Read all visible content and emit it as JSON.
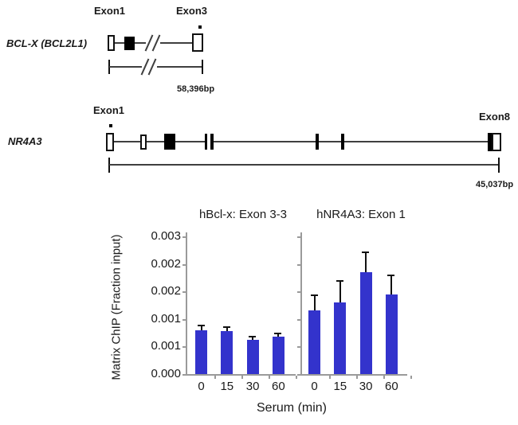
{
  "gene_diagrams": [
    {
      "name": "BCL-X (BCL2L1)",
      "left_exon_label": "Exon1",
      "right_exon_label": "Exon3",
      "length_label": "58,396bp"
    },
    {
      "name": "NR4A3",
      "left_exon_label": "Exon1",
      "right_exon_label": "Exon8",
      "length_label": "45,037bp"
    }
  ],
  "chart_data": {
    "type": "bar",
    "xlabel": "Serum (min)",
    "ylabel": "Matrix ChIP (Fraction input)",
    "categories": [
      "0",
      "15",
      "30",
      "60"
    ],
    "y_axis": {
      "tick_labels_bottom_to_top": [
        "0.000",
        "0.001",
        "0.001",
        "0.002",
        "0.002",
        "0.003"
      ],
      "tick_values": [
        0,
        0.0005,
        0.001,
        0.0015,
        0.002,
        0.0025
      ],
      "range": [
        0,
        0.0025
      ]
    },
    "bar_color": "#3333cc",
    "series": [
      {
        "key": "hbclx",
        "label": "hBcl-x: Exon 3-3",
        "values": [
          0.0008,
          0.00078,
          0.00062,
          0.00068
        ],
        "errors_plus": [
          0.0001,
          9e-05,
          8e-05,
          7e-05
        ]
      },
      {
        "key": "hnr4a3",
        "label": "hNR4A3: Exon 1",
        "values": [
          0.00115,
          0.0013,
          0.00185,
          0.00145
        ],
        "errors_plus": [
          0.0003,
          0.0004,
          0.00038,
          0.00035
        ]
      }
    ]
  }
}
